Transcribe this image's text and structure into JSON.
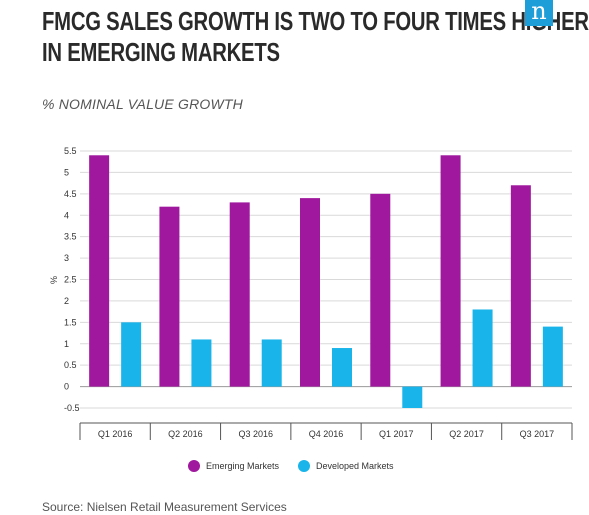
{
  "header": {
    "title_line1": "FMCG SALES GROWTH IS TWO TO FOUR TIMES HIGHER",
    "title_line2": "IN EMERGING MARKETS",
    "logo_letter": "n",
    "logo_color": "#1e9ed8"
  },
  "source": "Source: Nielsen Retail Measurement Services",
  "chart_data": {
    "type": "bar",
    "title": "FMCG SALES GROWTH IS TWO TO FOUR TIMES HIGHER IN EMERGING MARKETS",
    "subtitle": "% NOMINAL VALUE GROWTH",
    "ylabel": "%",
    "xlabel": "",
    "categories": [
      "Q1 2016",
      "Q2 2016",
      "Q3 2016",
      "Q4 2016",
      "Q1 2017",
      "Q2 2017",
      "Q3 2017"
    ],
    "series": [
      {
        "name": "Emerging Markets",
        "color": "#a0189e",
        "values": [
          5.4,
          4.2,
          4.3,
          4.4,
          4.5,
          5.4,
          4.7
        ]
      },
      {
        "name": "Developed Markets",
        "color": "#19b4ea",
        "values": [
          1.5,
          1.1,
          1.1,
          0.9,
          -0.5,
          1.8,
          1.4
        ]
      }
    ],
    "yticks": [
      -0.5,
      0,
      0.5,
      1,
      1.5,
      2,
      2.5,
      3,
      3.5,
      4,
      4.5,
      5,
      5.5
    ],
    "ytick_labels": [
      "-0.5",
      "0",
      "0.5",
      "1",
      "1.5",
      "2",
      "2.5",
      "3",
      "3.5",
      "4",
      "4.5",
      "5",
      "5.5"
    ],
    "ylim": [
      -0.5,
      5.5
    ],
    "grid": true,
    "legend_position": "bottom"
  }
}
